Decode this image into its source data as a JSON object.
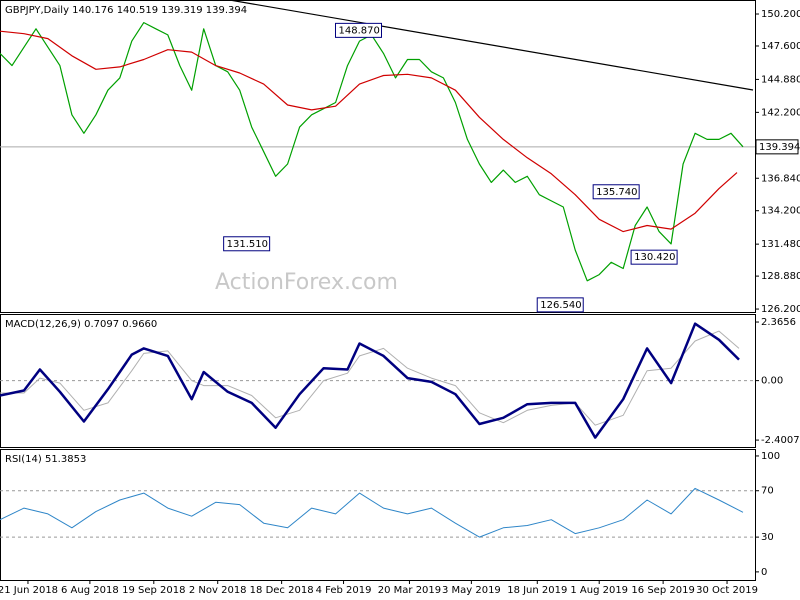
{
  "chart_data": [
    {
      "type": "line",
      "title": "GBPJPY,Daily  140.176 140.519 139.319 139.394",
      "watermark": "ActionForex.com",
      "xlim": [
        0,
        378
      ],
      "ylim": [
        125.96,
        151.34
      ],
      "yticks": [
        {
          "value": 150.2,
          "label": "150.200"
        },
        {
          "value": 147.6,
          "label": "147.600"
        },
        {
          "value": 144.88,
          "label": "144.880"
        },
        {
          "value": 142.2,
          "label": "142.200"
        },
        {
          "value": 136.84,
          "label": "136.840"
        },
        {
          "value": 134.2,
          "label": "134.200"
        },
        {
          "value": 131.48,
          "label": "131.480"
        },
        {
          "value": 128.88,
          "label": "128.880"
        },
        {
          "value": 126.2,
          "label": "126.200"
        }
      ],
      "last": {
        "value": 139.394,
        "label": "139.394"
      },
      "series": [
        {
          "color": "#00a000",
          "x": [
            0,
            6,
            12,
            18,
            24,
            30,
            36,
            42,
            48,
            54,
            60,
            66,
            72,
            78,
            84,
            90,
            96,
            102,
            108,
            114,
            120,
            126,
            132,
            138,
            144,
            150,
            156,
            162,
            168,
            174,
            180,
            186,
            192,
            198,
            204,
            210,
            216,
            222,
            228,
            234,
            240,
            246,
            252,
            258,
            264,
            270,
            276,
            282,
            288,
            294,
            300,
            306,
            312,
            318,
            324,
            330,
            336,
            342,
            348,
            354,
            360,
            366,
            372
          ],
          "values": [
            147,
            146,
            147.5,
            149,
            147.5,
            146,
            142,
            140.5,
            142,
            144,
            145,
            148,
            149.5,
            149,
            148.5,
            146,
            144,
            149,
            146,
            145.5,
            144,
            141,
            139,
            137,
            138,
            141,
            142,
            142.5,
            143,
            146,
            148,
            148.5,
            147,
            145,
            146.5,
            146.5,
            145.5,
            145,
            143,
            140,
            138,
            136.5,
            137.5,
            136.5,
            137,
            135.5,
            135,
            134.5,
            131,
            128.5,
            129,
            130,
            129.5,
            133,
            134.5,
            132.5,
            131.5,
            138,
            140.5,
            140,
            140,
            140.5,
            139.4
          ]
        },
        {
          "color": "#d00000",
          "x": [
            0,
            12,
            24,
            36,
            48,
            60,
            72,
            84,
            96,
            108,
            120,
            132,
            144,
            156,
            168,
            180,
            192,
            204,
            216,
            228,
            240,
            252,
            264,
            276,
            288,
            300,
            312,
            324,
            336,
            348,
            360,
            369
          ],
          "values": [
            148.8,
            148.6,
            148.2,
            146.8,
            145.7,
            145.9,
            146.5,
            147.3,
            147.1,
            146,
            145.4,
            144.5,
            142.8,
            142.4,
            142.7,
            144.5,
            145.2,
            145.3,
            145,
            144,
            141.8,
            140,
            138.5,
            137.2,
            135.5,
            133.5,
            132.5,
            133,
            132.7,
            134,
            136,
            137.3
          ]
        }
      ],
      "trendline": {
        "color": "#000000",
        "x": [
          115,
          377
        ],
        "values": [
          151.34,
          144.02
        ]
      },
      "annotations": [
        {
          "x": 191,
          "value": 148.87,
          "label": "148.870"
        },
        {
          "x": 135,
          "value": 131.51,
          "label": "131.510"
        },
        {
          "x": 320,
          "value": 135.74,
          "label": "135.740"
        },
        {
          "x": 339,
          "value": 130.42,
          "label": "130.420"
        },
        {
          "x": 292,
          "value": 126.54,
          "label": "126.540"
        }
      ]
    },
    {
      "type": "line",
      "title": "MACD(12,26,9) 0.7097 0.9660",
      "xlim": [
        0,
        378
      ],
      "ylim": [
        -2.68,
        2.69
      ],
      "yticks": [
        2.3656,
        {
          "value": 0,
          "label": "0.00"
        },
        -2.4007
      ],
      "levels": [
        0
      ],
      "series": [
        {
          "color": "#b0b0b0",
          "width": 1,
          "x": [
            0,
            12,
            20,
            30,
            42,
            54,
            66,
            72,
            84,
            96,
            102,
            114,
            126,
            138,
            150,
            162,
            174,
            180,
            192,
            204,
            216,
            228,
            240,
            252,
            264,
            276,
            288,
            298,
            312,
            324,
            336,
            348,
            360,
            370
          ],
          "values": [
            -0.5,
            -0.5,
            0.1,
            -0.1,
            -1.2,
            -0.9,
            0.4,
            1.1,
            1.2,
            0,
            -0.2,
            -0.2,
            -0.6,
            -1.5,
            -1.2,
            0,
            0.3,
            1,
            1.3,
            0.5,
            0.1,
            -0.2,
            -1.3,
            -1.7,
            -1.2,
            -1,
            -0.9,
            -1.8,
            -1.4,
            0.4,
            0.5,
            1.6,
            2,
            1.3
          ]
        },
        {
          "color": "#000080",
          "width": 2.5,
          "x": [
            0,
            12,
            20,
            30,
            42,
            54,
            66,
            72,
            84,
            96,
            102,
            114,
            126,
            138,
            150,
            162,
            174,
            180,
            192,
            204,
            216,
            228,
            240,
            252,
            264,
            276,
            288,
            298,
            312,
            324,
            336,
            348,
            360,
            370
          ],
          "values": [
            -0.6,
            -0.4,
            0.45,
            -0.45,
            -1.65,
            -0.35,
            1.05,
            1.3,
            1,
            -0.75,
            0.35,
            -0.45,
            -0.9,
            -1.9,
            -0.55,
            0.5,
            0.45,
            1.5,
            1,
            0.1,
            -0.05,
            -0.55,
            -1.75,
            -1.5,
            -0.95,
            -0.9,
            -0.9,
            -2.3,
            -0.75,
            1.3,
            -0.1,
            2.3,
            1.65,
            0.85
          ]
        }
      ]
    },
    {
      "type": "line",
      "title": "RSI(14) 51.3853",
      "xlim": [
        0,
        378
      ],
      "ylim": [
        -7,
        106
      ],
      "yticks": [
        100,
        70,
        30,
        0
      ],
      "levels": [
        70,
        30
      ],
      "xticks": [
        {
          "value": 14,
          "label": "21 Jun 2018"
        },
        {
          "value": 45,
          "label": "6 Aug 2018"
        },
        {
          "value": 77,
          "label": "19 Sep 2018"
        },
        {
          "value": 109,
          "label": "2 Nov 2018"
        },
        {
          "value": 141,
          "label": "18 Dec 2018"
        },
        {
          "value": 172,
          "label": "4 Feb 2019"
        },
        {
          "value": 205,
          "label": "20 Mar 2019"
        },
        {
          "value": 236,
          "label": "3 May 2019"
        },
        {
          "value": 269,
          "label": "18 Jun 2019"
        },
        {
          "value": 300,
          "label": "1 Aug 2019"
        },
        {
          "value": 332,
          "label": "16 Sep 2019"
        },
        {
          "value": 364,
          "label": "30 Oct 2019"
        }
      ],
      "series": [
        {
          "color": "#2f86c8",
          "width": 1,
          "x": [
            0,
            12,
            24,
            36,
            48,
            60,
            72,
            84,
            96,
            108,
            120,
            132,
            144,
            156,
            168,
            180,
            192,
            204,
            216,
            228,
            240,
            252,
            264,
            276,
            288,
            300,
            312,
            324,
            336,
            348,
            360,
            372
          ],
          "values": [
            45,
            55,
            50,
            38,
            52,
            62,
            68,
            55,
            48,
            60,
            58,
            42,
            38,
            55,
            50,
            68,
            55,
            50,
            55,
            42,
            30,
            38,
            40,
            45,
            33,
            38,
            45,
            62,
            50,
            72,
            62,
            51.4
          ]
        }
      ]
    }
  ]
}
